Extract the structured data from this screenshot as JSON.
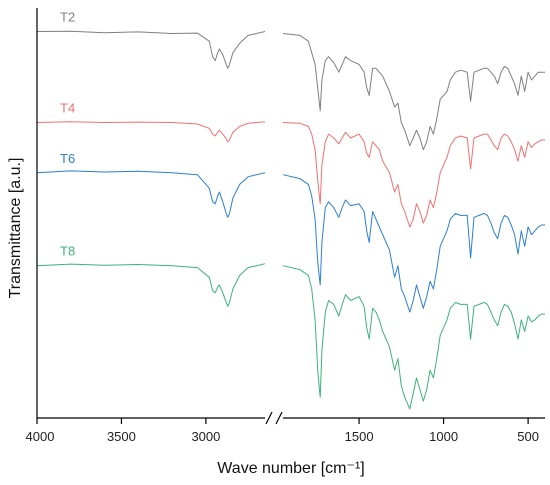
{
  "chart_data": {
    "type": "line",
    "xlabel": "Wave number [cm⁻¹]",
    "ylabel": "Transmittance  [a.u.]",
    "x_axis_reversed": true,
    "x_axis_break": true,
    "x_segments": [
      {
        "range": [
          4000,
          2650
        ]
      },
      {
        "range": [
          1950,
          400
        ]
      }
    ],
    "y_ticks_shown": false,
    "grid": false,
    "x_ticks": [
      4000,
      3500,
      3000,
      1500,
      1000,
      500
    ],
    "x_tick_labels": [
      "4000",
      "3500",
      "3000",
      "1500",
      "1000",
      "500"
    ],
    "y_range": [
      0,
      100
    ],
    "series": [
      {
        "name": "T2",
        "color": "#7f7f7f",
        "x": [
          4000,
          3800,
          3600,
          3400,
          3200,
          3050,
          2980,
          2960,
          2945,
          2930,
          2920,
          2900,
          2880,
          2870,
          2860,
          2840,
          2800,
          2750,
          2700,
          2650,
          1950,
          1850,
          1800,
          1780,
          1760,
          1745,
          1730,
          1720,
          1700,
          1680,
          1650,
          1620,
          1600,
          1580,
          1550,
          1500,
          1470,
          1455,
          1440,
          1420,
          1400,
          1380,
          1360,
          1320,
          1290,
          1270,
          1250,
          1230,
          1200,
          1180,
          1160,
          1140,
          1120,
          1100,
          1080,
          1060,
          1040,
          1020,
          1000,
          980,
          960,
          930,
          900,
          860,
          840,
          820,
          790,
          760,
          740,
          720,
          700,
          680,
          660,
          640,
          620,
          600,
          580,
          560,
          540,
          520,
          500,
          480,
          460,
          440,
          420,
          400
        ],
        "y": [
          96.5,
          96.6,
          96.2,
          96.4,
          96.0,
          96.1,
          94.0,
          90.0,
          89.0,
          91.0,
          92.0,
          90.5,
          88.0,
          87.0,
          88.0,
          91.0,
          93.5,
          95.5,
          96.0,
          96.5,
          96.0,
          95.5,
          94.0,
          91.0,
          88.0,
          82.0,
          76.0,
          84.0,
          89.0,
          90.0,
          88.5,
          86.0,
          88.0,
          90.0,
          89.0,
          88.0,
          86.0,
          82.0,
          80.0,
          87.0,
          87.0,
          86.0,
          85.0,
          81.0,
          77.0,
          78.0,
          73.0,
          71.0,
          67.0,
          69.0,
          71.0,
          69.0,
          66.0,
          68.0,
          72.0,
          70.0,
          74.0,
          79.0,
          80.0,
          81.0,
          84.0,
          86.0,
          86.5,
          86.0,
          78.5,
          86.0,
          86.5,
          87.0,
          87.0,
          86.0,
          85.0,
          83.0,
          86.0,
          87.5,
          87.0,
          85.0,
          83.0,
          80.0,
          85.0,
          81.0,
          86.0,
          84.0,
          85.0,
          86.0,
          86.0,
          86.0
        ]
      },
      {
        "name": "T4",
        "color": "#f07070",
        "x": [
          4000,
          3800,
          3600,
          3400,
          3200,
          3050,
          2980,
          2960,
          2945,
          2930,
          2920,
          2900,
          2880,
          2870,
          2860,
          2840,
          2800,
          2750,
          2700,
          2650,
          1950,
          1850,
          1800,
          1780,
          1760,
          1745,
          1730,
          1720,
          1700,
          1680,
          1650,
          1620,
          1600,
          1580,
          1550,
          1500,
          1470,
          1455,
          1440,
          1420,
          1400,
          1380,
          1360,
          1320,
          1290,
          1270,
          1250,
          1230,
          1200,
          1180,
          1160,
          1140,
          1120,
          1100,
          1080,
          1060,
          1040,
          1020,
          1000,
          980,
          960,
          930,
          900,
          860,
          840,
          820,
          790,
          760,
          740,
          720,
          700,
          680,
          660,
          640,
          620,
          600,
          580,
          560,
          540,
          520,
          500,
          480,
          460,
          440,
          420,
          400
        ],
        "y": [
          73.0,
          73.2,
          73.0,
          73.1,
          73.0,
          72.6,
          71.5,
          70.0,
          69.5,
          70.5,
          71.0,
          70.0,
          68.8,
          68.0,
          68.5,
          70.5,
          72.0,
          72.8,
          73.0,
          73.2,
          73.0,
          72.8,
          72.0,
          70.0,
          66.0,
          58.0,
          52.0,
          62.0,
          68.0,
          70.0,
          69.0,
          67.5,
          69.0,
          70.5,
          69.0,
          70.0,
          68.0,
          65.0,
          64.0,
          68.0,
          67.0,
          66.0,
          63.0,
          60.0,
          55.0,
          57.0,
          52.0,
          50.0,
          46.0,
          48.0,
          52.0,
          50.0,
          47.0,
          49.0,
          53.0,
          51.0,
          55.0,
          60.0,
          62.0,
          64.0,
          67.0,
          69.0,
          69.5,
          69.0,
          61.0,
          69.0,
          69.5,
          70.0,
          70.0,
          68.5,
          67.0,
          66.0,
          69.0,
          70.0,
          69.5,
          68.0,
          66.0,
          63.0,
          67.0,
          64.0,
          68.0,
          66.5,
          67.5,
          68.0,
          68.5,
          68.5
        ]
      },
      {
        "name": "T6",
        "color": "#2b7fd4",
        "x": [
          4000,
          3800,
          3600,
          3400,
          3200,
          3050,
          2980,
          2960,
          2945,
          2930,
          2920,
          2900,
          2880,
          2870,
          2860,
          2840,
          2800,
          2750,
          2700,
          2650,
          1950,
          1850,
          1800,
          1780,
          1760,
          1745,
          1730,
          1720,
          1700,
          1680,
          1650,
          1620,
          1600,
          1580,
          1550,
          1500,
          1470,
          1455,
          1440,
          1420,
          1400,
          1380,
          1360,
          1320,
          1290,
          1270,
          1250,
          1230,
          1200,
          1180,
          1160,
          1140,
          1120,
          1100,
          1080,
          1060,
          1040,
          1020,
          1000,
          980,
          960,
          930,
          900,
          860,
          840,
          820,
          790,
          760,
          740,
          720,
          700,
          680,
          660,
          640,
          620,
          600,
          580,
          560,
          540,
          520,
          500,
          480,
          460,
          440,
          420,
          400
        ],
        "y": [
          60.0,
          60.5,
          60.2,
          60.4,
          60.0,
          59.5,
          56.0,
          52.5,
          52.0,
          54.0,
          55.0,
          52.5,
          49.5,
          48.5,
          49.5,
          53.5,
          57.0,
          59.0,
          59.5,
          60.0,
          59.5,
          58.5,
          57.0,
          54.0,
          48.0,
          37.0,
          31.0,
          42.0,
          51.0,
          52.5,
          51.0,
          48.5,
          51.0,
          53.0,
          51.5,
          52.0,
          50.0,
          45.0,
          42.0,
          50.0,
          48.0,
          46.0,
          44.0,
          40.0,
          33.0,
          36.0,
          30.0,
          28.0,
          24.0,
          27.0,
          31.0,
          28.0,
          25.0,
          28.0,
          32.0,
          30.0,
          35.0,
          41.0,
          43.0,
          45.0,
          48.0,
          49.5,
          49.0,
          49.0,
          38.0,
          48.5,
          49.0,
          49.5,
          49.0,
          47.0,
          44.5,
          43.0,
          47.0,
          49.0,
          48.5,
          46.5,
          44.0,
          39.0,
          45.0,
          41.0,
          46.0,
          44.0,
          45.0,
          46.0,
          46.5,
          46.5
        ]
      },
      {
        "name": "T8",
        "color": "#3cb37a",
        "x": [
          4000,
          3800,
          3600,
          3400,
          3200,
          3050,
          2980,
          2960,
          2945,
          2930,
          2920,
          2900,
          2880,
          2870,
          2860,
          2840,
          2800,
          2750,
          2700,
          2650,
          1950,
          1850,
          1800,
          1780,
          1760,
          1745,
          1730,
          1720,
          1700,
          1680,
          1650,
          1620,
          1600,
          1580,
          1550,
          1500,
          1470,
          1455,
          1440,
          1420,
          1400,
          1380,
          1360,
          1320,
          1290,
          1270,
          1250,
          1230,
          1200,
          1180,
          1160,
          1140,
          1120,
          1100,
          1080,
          1060,
          1040,
          1020,
          1000,
          980,
          960,
          930,
          900,
          860,
          840,
          820,
          790,
          760,
          740,
          720,
          700,
          680,
          660,
          640,
          620,
          600,
          580,
          560,
          540,
          520,
          500,
          480,
          460,
          440,
          420,
          400
        ],
        "y": [
          36.0,
          36.4,
          36.1,
          36.3,
          36.0,
          35.5,
          33.0,
          29.5,
          29.0,
          30.5,
          31.0,
          29.0,
          26.5,
          25.5,
          26.5,
          30.0,
          33.5,
          35.5,
          36.0,
          36.5,
          36.0,
          35.0,
          33.5,
          30.0,
          22.0,
          9.0,
          2.0,
          14.0,
          24.0,
          27.0,
          26.0,
          23.0,
          26.0,
          28.5,
          27.0,
          28.0,
          25.5,
          20.0,
          17.0,
          25.0,
          24.0,
          22.0,
          19.0,
          15.0,
          9.0,
          12.0,
          5.0,
          2.0,
          -1.0,
          3.0,
          7.0,
          4.0,
          1.0,
          4.0,
          9.0,
          7.0,
          12.0,
          18.0,
          20.0,
          22.0,
          25.0,
          26.5,
          26.0,
          26.0,
          17.0,
          25.5,
          26.0,
          26.5,
          26.0,
          24.0,
          22.0,
          20.5,
          24.0,
          26.0,
          25.5,
          24.0,
          21.0,
          17.0,
          22.0,
          19.0,
          23.0,
          21.5,
          22.0,
          23.0,
          23.5,
          23.5
        ]
      }
    ]
  }
}
